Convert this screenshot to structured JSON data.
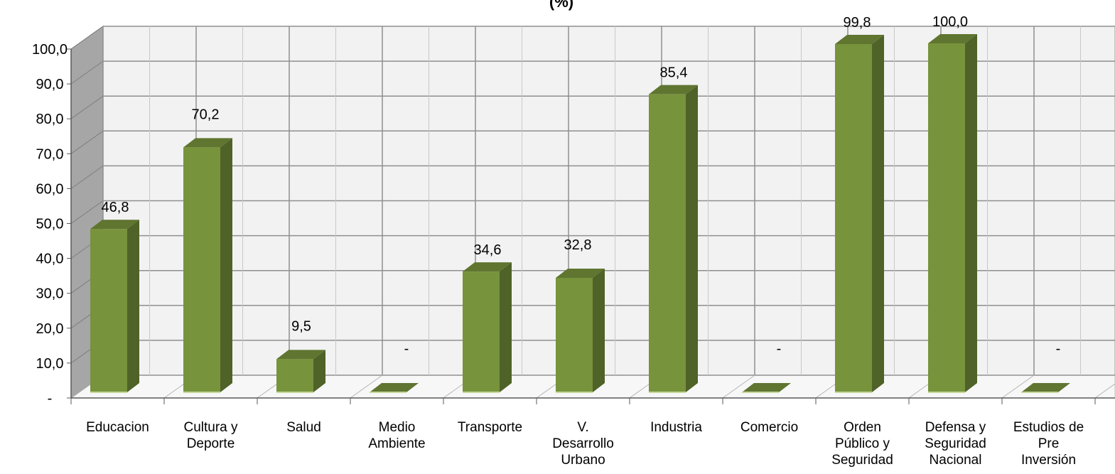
{
  "chart_data": {
    "type": "bar",
    "title": "(%)",
    "categories": [
      [
        "Educacion"
      ],
      [
        "Cultura y",
        "Deporte"
      ],
      [
        "Salud"
      ],
      [
        "Medio",
        "Ambiente"
      ],
      [
        "Transporte"
      ],
      [
        "V.",
        "Desarrollo",
        "Urbano"
      ],
      [
        "Industria"
      ],
      [
        "Comercio"
      ],
      [
        "Orden",
        "Público y",
        "Seguridad"
      ],
      [
        "Defensa y",
        "Seguridad",
        "Nacional"
      ],
      [
        "Estudios de",
        "Pre",
        "Inversión"
      ]
    ],
    "values": [
      46.8,
      70.2,
      9.5,
      0,
      34.6,
      32.8,
      85.4,
      0,
      99.8,
      100.0,
      0
    ],
    "value_labels": [
      "46,8",
      "70,2",
      "9,5",
      "-",
      "34,6",
      "32,8",
      "85,4",
      "-",
      "99,8",
      "100,0",
      "-"
    ],
    "ylim": [
      0,
      100
    ],
    "yticks": [
      0,
      10,
      20,
      30,
      40,
      50,
      60,
      70,
      80,
      90,
      100
    ],
    "ytick_labels": [
      "-",
      "10,0",
      "20,0",
      "30,0",
      "40,0",
      "50,0",
      "60,0",
      "70,0",
      "80,0",
      "90,0",
      "100,0"
    ],
    "grid": true,
    "legend": "none",
    "colors": {
      "bar_front": "#77933c",
      "bar_side": "#4f6228",
      "bar_top": "#5f7530",
      "wall": "#f2f2f2",
      "side_wall": "#a6a6a6",
      "grid": "#c8c8c8"
    }
  }
}
